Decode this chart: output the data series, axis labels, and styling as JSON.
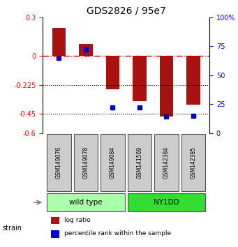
{
  "title": "GDS2826 / 95e7",
  "samples": [
    "GSM149076",
    "GSM149078",
    "GSM149084",
    "GSM141569",
    "GSM142384",
    "GSM142385"
  ],
  "log_ratio": [
    0.22,
    0.09,
    -0.26,
    -0.35,
    -0.47,
    -0.38
  ],
  "percentile_rank": [
    65,
    72,
    22,
    22,
    14,
    15
  ],
  "groups": [
    {
      "label": "wild type",
      "indices": [
        0,
        1,
        2
      ],
      "color": "#aaffaa"
    },
    {
      "label": "NY1DD",
      "indices": [
        3,
        4,
        5
      ],
      "color": "#33dd33"
    }
  ],
  "bar_color": "#aa1111",
  "dot_color": "#0000cc",
  "ylim": [
    -0.6,
    0.3
  ],
  "y2lim": [
    0,
    100
  ],
  "yticks": [
    0.3,
    0,
    -0.225,
    -0.45,
    -0.6
  ],
  "ytick_labels": [
    "0.3",
    "0",
    "-0.225",
    "-0.45",
    "-0.6"
  ],
  "y2ticks": [
    100,
    75,
    50,
    25,
    0
  ],
  "hline_0_color": "#cc0000",
  "hline_dotted_color": "#000000",
  "bar_width": 0.5,
  "sample_box_color": "#cccccc",
  "strain_label": "strain"
}
